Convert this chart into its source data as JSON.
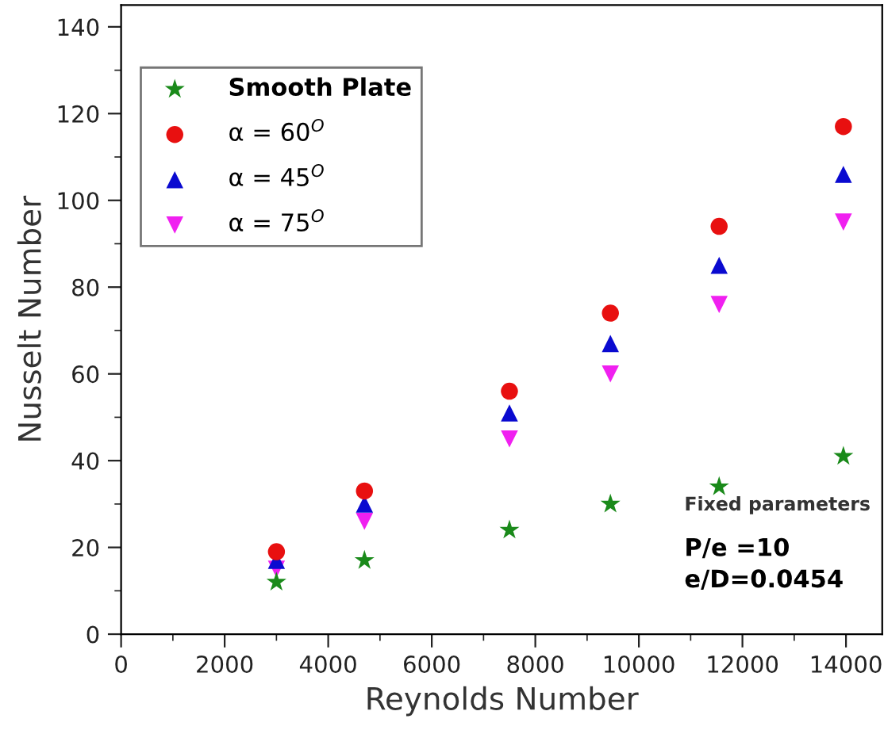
{
  "chart_data": {
    "type": "scatter",
    "xlabel": "Reynolds Number",
    "ylabel": "Nusselt Number",
    "xlim": [
      0,
      14700
    ],
    "ylim": [
      0,
      145
    ],
    "xticks": [
      0,
      2000,
      4000,
      6000,
      8000,
      10000,
      12000,
      14000
    ],
    "yticks": [
      0,
      20,
      40,
      60,
      80,
      100,
      120,
      140
    ],
    "grid": false,
    "legend": "top left",
    "series": [
      {
        "name": "Smooth Plate",
        "color": "#1a8a1a",
        "marker": "star",
        "x": [
          3000,
          4700,
          7500,
          9450,
          11550,
          13950
        ],
        "values": [
          12,
          17,
          24,
          30,
          34,
          41
        ]
      },
      {
        "name": "α = 60$^{O}$",
        "color": "#e81010",
        "marker": "circle",
        "x": [
          3000,
          4700,
          7500,
          9450,
          11550,
          13950
        ],
        "values": [
          19,
          33,
          56,
          74,
          94,
          117
        ]
      },
      {
        "name": "α = 45$^{O}$",
        "color": "#0a0ad0",
        "marker": "triangle",
        "x": [
          3000,
          4700,
          7500,
          9450,
          11550,
          13950
        ],
        "values": [
          17,
          30,
          51,
          67,
          85,
          106
        ]
      },
      {
        "name": "α = 75$^{O}$",
        "color": "#f020f0",
        "marker": "triangle_down",
        "x": [
          3000,
          4700,
          7500,
          9450,
          11550,
          13950
        ],
        "values": [
          15,
          26,
          45,
          60,
          76,
          95
        ]
      }
    ],
    "annotations": [
      "Fixed parameters",
      "P/e =10",
      "e/D=0.0454"
    ]
  }
}
